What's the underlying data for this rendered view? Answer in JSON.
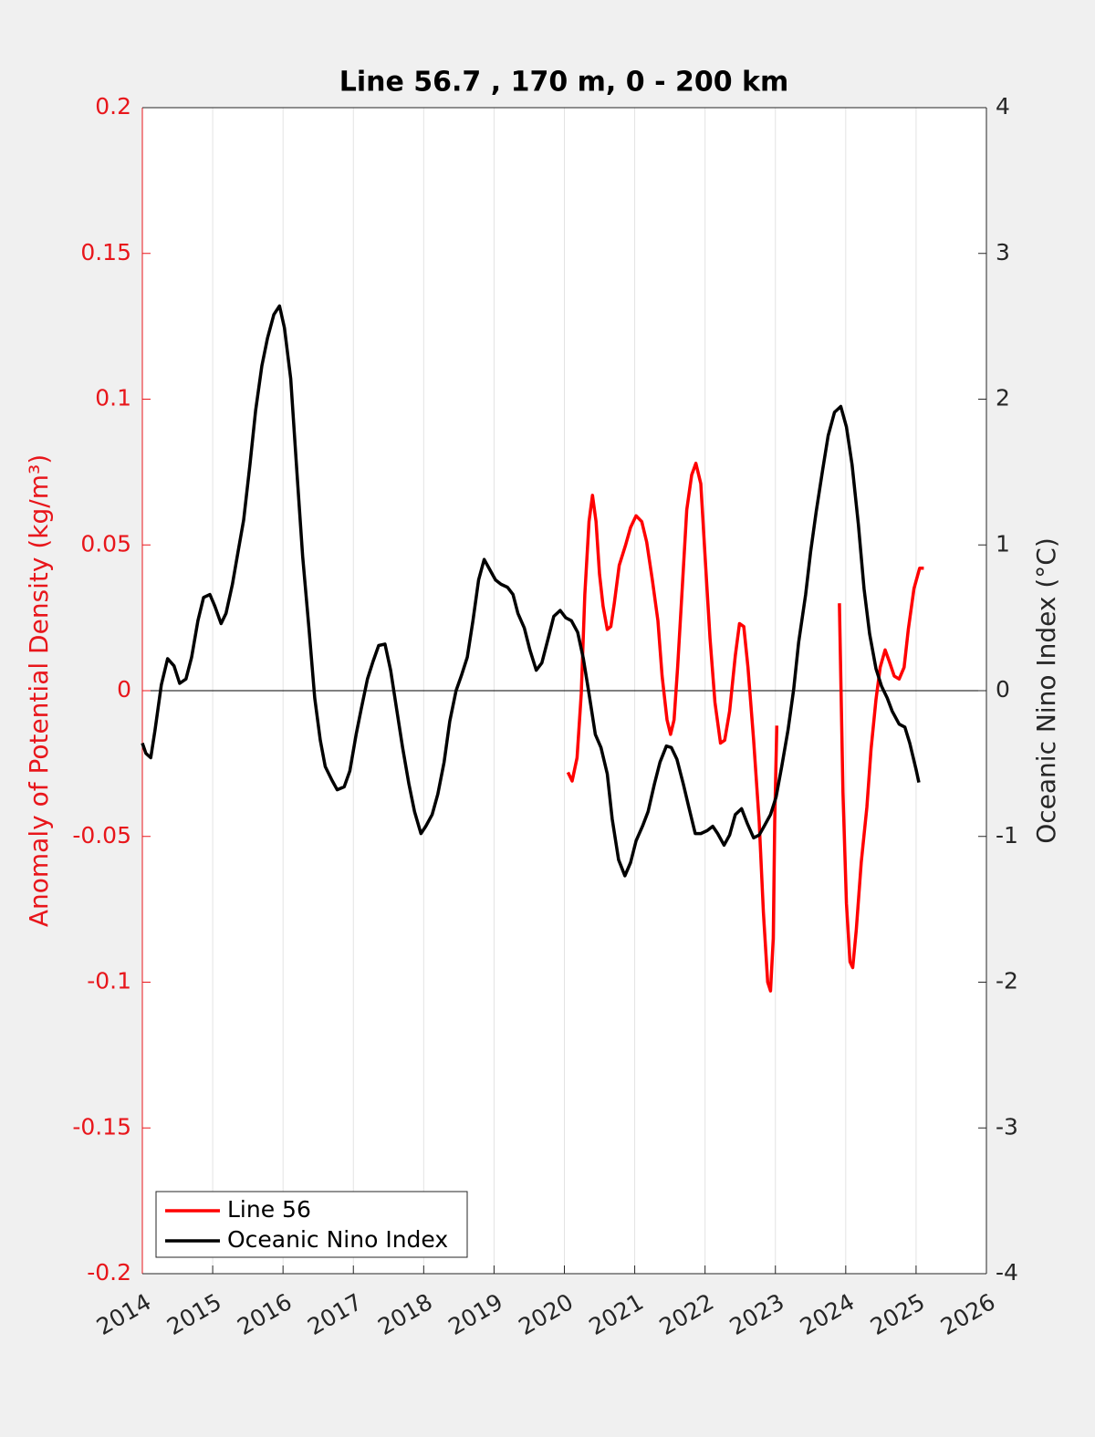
{
  "chart_data": {
    "type": "line",
    "title": "Line 56.7 , 170 m, 0 - 200 km",
    "ylabel": "Anomaly of Potential Density (kg/m³)",
    "y2label": "Oceanic Nino Index (°C)",
    "ycolor": "#e8161b",
    "xlim": [
      2014,
      2026
    ],
    "xticks": [
      2014,
      2015,
      2016,
      2017,
      2018,
      2019,
      2020,
      2021,
      2022,
      2023,
      2024,
      2025,
      2026
    ],
    "ylim": [
      -0.2,
      0.2
    ],
    "yticks": [
      -0.2,
      -0.15,
      -0.1,
      -0.05,
      0,
      0.05,
      0.1,
      0.15,
      0.2
    ],
    "y2lim": [
      -4,
      4
    ],
    "y2ticks": [
      -4,
      -3,
      -2,
      -1,
      0,
      1,
      2,
      3,
      4
    ],
    "grid": "x",
    "legend": "lower left",
    "series": [
      {
        "name": "Line 56",
        "color": "#ff0000",
        "x": [
          2020.05,
          2020.11,
          2020.18,
          2020.24,
          2020.29,
          2020.35,
          2020.4,
          2020.45,
          2020.5,
          2020.55,
          2020.61,
          2020.66,
          2020.71,
          2020.78,
          2020.87,
          2020.94,
          2021.02,
          2021.1,
          2021.17,
          2021.25,
          2021.33,
          2021.39,
          2021.46,
          2021.51,
          2021.56,
          2021.61,
          2021.68,
          2021.74,
          2021.81,
          2021.87,
          2021.94,
          2022.0,
          2022.07,
          2022.14,
          2022.22,
          2022.28,
          2022.35,
          2022.43,
          2022.49,
          2022.55,
          2022.61,
          2022.69,
          2022.77,
          2022.83,
          2022.89,
          2022.93,
          2022.97,
          2022.99,
          2023.02,
          2023.5,
          2023.91,
          2023.96,
          2024.01,
          2024.06,
          2024.1,
          2024.15,
          2024.22,
          2024.3,
          2024.36,
          2024.43,
          2024.49,
          2024.56,
          2024.62,
          2024.69,
          2024.76,
          2024.83,
          2024.89,
          2024.97,
          2025.05,
          2025.11
        ],
        "values": [
          -0.028,
          -0.031,
          -0.023,
          -0.001,
          0.033,
          0.058,
          0.067,
          0.058,
          0.04,
          0.029,
          0.021,
          0.022,
          0.03,
          0.043,
          0.05,
          0.056,
          0.06,
          0.058,
          0.051,
          0.038,
          0.024,
          0.005,
          -0.01,
          -0.015,
          -0.01,
          0.008,
          0.037,
          0.062,
          0.074,
          0.078,
          0.071,
          0.046,
          0.018,
          -0.004,
          -0.018,
          -0.017,
          -0.007,
          0.012,
          0.023,
          0.022,
          0.008,
          -0.017,
          -0.045,
          -0.076,
          -0.1,
          -0.103,
          -0.085,
          -0.045,
          -0.012,
          null,
          0.03,
          -0.035,
          -0.073,
          -0.093,
          -0.095,
          -0.082,
          -0.059,
          -0.04,
          -0.02,
          -0.003,
          0.008,
          0.014,
          0.01,
          0.005,
          0.004,
          0.008,
          0.021,
          0.035,
          0.042,
          0.042
        ]
      },
      {
        "name": "Oceanic Nino Index",
        "color": "#000000",
        "axis": "y2",
        "x": [
          2014.0,
          2014.05,
          2014.12,
          2014.18,
          2014.27,
          2014.36,
          2014.45,
          2014.53,
          2014.62,
          2014.7,
          2014.79,
          2014.87,
          2014.96,
          2015.03,
          2015.12,
          2015.19,
          2015.28,
          2015.36,
          2015.44,
          2015.53,
          2015.61,
          2015.7,
          2015.78,
          2015.87,
          2015.95,
          2016.02,
          2016.11,
          2016.2,
          2016.28,
          2016.37,
          2016.45,
          2016.53,
          2016.6,
          2016.69,
          2016.77,
          2016.87,
          2016.95,
          2017.04,
          2017.11,
          2017.2,
          2017.28,
          2017.36,
          2017.45,
          2017.53,
          2017.62,
          2017.7,
          2017.79,
          2017.87,
          2017.96,
          2018.03,
          2018.12,
          2018.2,
          2018.29,
          2018.37,
          2018.46,
          2018.54,
          2018.62,
          2018.7,
          2018.78,
          2018.86,
          2018.94,
          2019.02,
          2019.1,
          2019.19,
          2019.27,
          2019.34,
          2019.43,
          2019.51,
          2019.6,
          2019.68,
          2019.77,
          2019.85,
          2019.94,
          2020.02,
          2020.1,
          2020.19,
          2020.27,
          2020.35,
          2020.44,
          2020.52,
          2020.61,
          2020.68,
          2020.77,
          2020.86,
          2020.94,
          2021.02,
          2021.11,
          2021.19,
          2021.28,
          2021.36,
          2021.45,
          2021.52,
          2021.6,
          2021.69,
          2021.77,
          2021.86,
          2021.94,
          2022.03,
          2022.11,
          2022.18,
          2022.27,
          2022.35,
          2022.43,
          2022.52,
          2022.6,
          2022.69,
          2022.77,
          2022.84,
          2022.93,
          2023.01,
          2023.09,
          2023.18,
          2023.26,
          2023.33,
          2023.43,
          2023.5,
          2023.58,
          2023.67,
          2023.75,
          2023.84,
          2023.93,
          2024.01,
          2024.09,
          2024.18,
          2024.26,
          2024.34,
          2024.43,
          2024.51,
          2024.59,
          2024.66,
          2024.76,
          2024.84,
          2024.91,
          2025.0,
          2025.04
        ],
        "values": [
          -0.36,
          -0.43,
          -0.46,
          -0.27,
          0.04,
          0.22,
          0.17,
          0.05,
          0.08,
          0.23,
          0.48,
          0.64,
          0.66,
          0.58,
          0.46,
          0.53,
          0.73,
          0.95,
          1.17,
          1.55,
          1.92,
          2.23,
          2.42,
          2.58,
          2.64,
          2.49,
          2.14,
          1.48,
          0.92,
          0.42,
          -0.05,
          -0.34,
          -0.52,
          -0.61,
          -0.68,
          -0.66,
          -0.55,
          -0.3,
          -0.13,
          0.08,
          0.2,
          0.31,
          0.32,
          0.14,
          -0.14,
          -0.39,
          -0.64,
          -0.83,
          -0.98,
          -0.93,
          -0.85,
          -0.71,
          -0.49,
          -0.21,
          0.0,
          0.11,
          0.23,
          0.48,
          0.76,
          0.9,
          0.83,
          0.76,
          0.73,
          0.71,
          0.66,
          0.53,
          0.43,
          0.28,
          0.14,
          0.19,
          0.36,
          0.51,
          0.55,
          0.5,
          0.48,
          0.4,
          0.22,
          -0.02,
          -0.3,
          -0.39,
          -0.57,
          -0.88,
          -1.16,
          -1.27,
          -1.18,
          -1.03,
          -0.93,
          -0.83,
          -0.64,
          -0.49,
          -0.38,
          -0.39,
          -0.47,
          -0.64,
          -0.8,
          -0.98,
          -0.98,
          -0.96,
          -0.93,
          -0.98,
          -1.06,
          -0.99,
          -0.85,
          -0.81,
          -0.91,
          -1.01,
          -0.99,
          -0.93,
          -0.85,
          -0.73,
          -0.52,
          -0.27,
          0.01,
          0.33,
          0.66,
          0.95,
          1.23,
          1.51,
          1.75,
          1.91,
          1.95,
          1.81,
          1.55,
          1.14,
          0.7,
          0.39,
          0.15,
          0.03,
          -0.05,
          -0.14,
          -0.23,
          -0.25,
          -0.36,
          -0.54,
          -0.63
        ]
      }
    ]
  }
}
